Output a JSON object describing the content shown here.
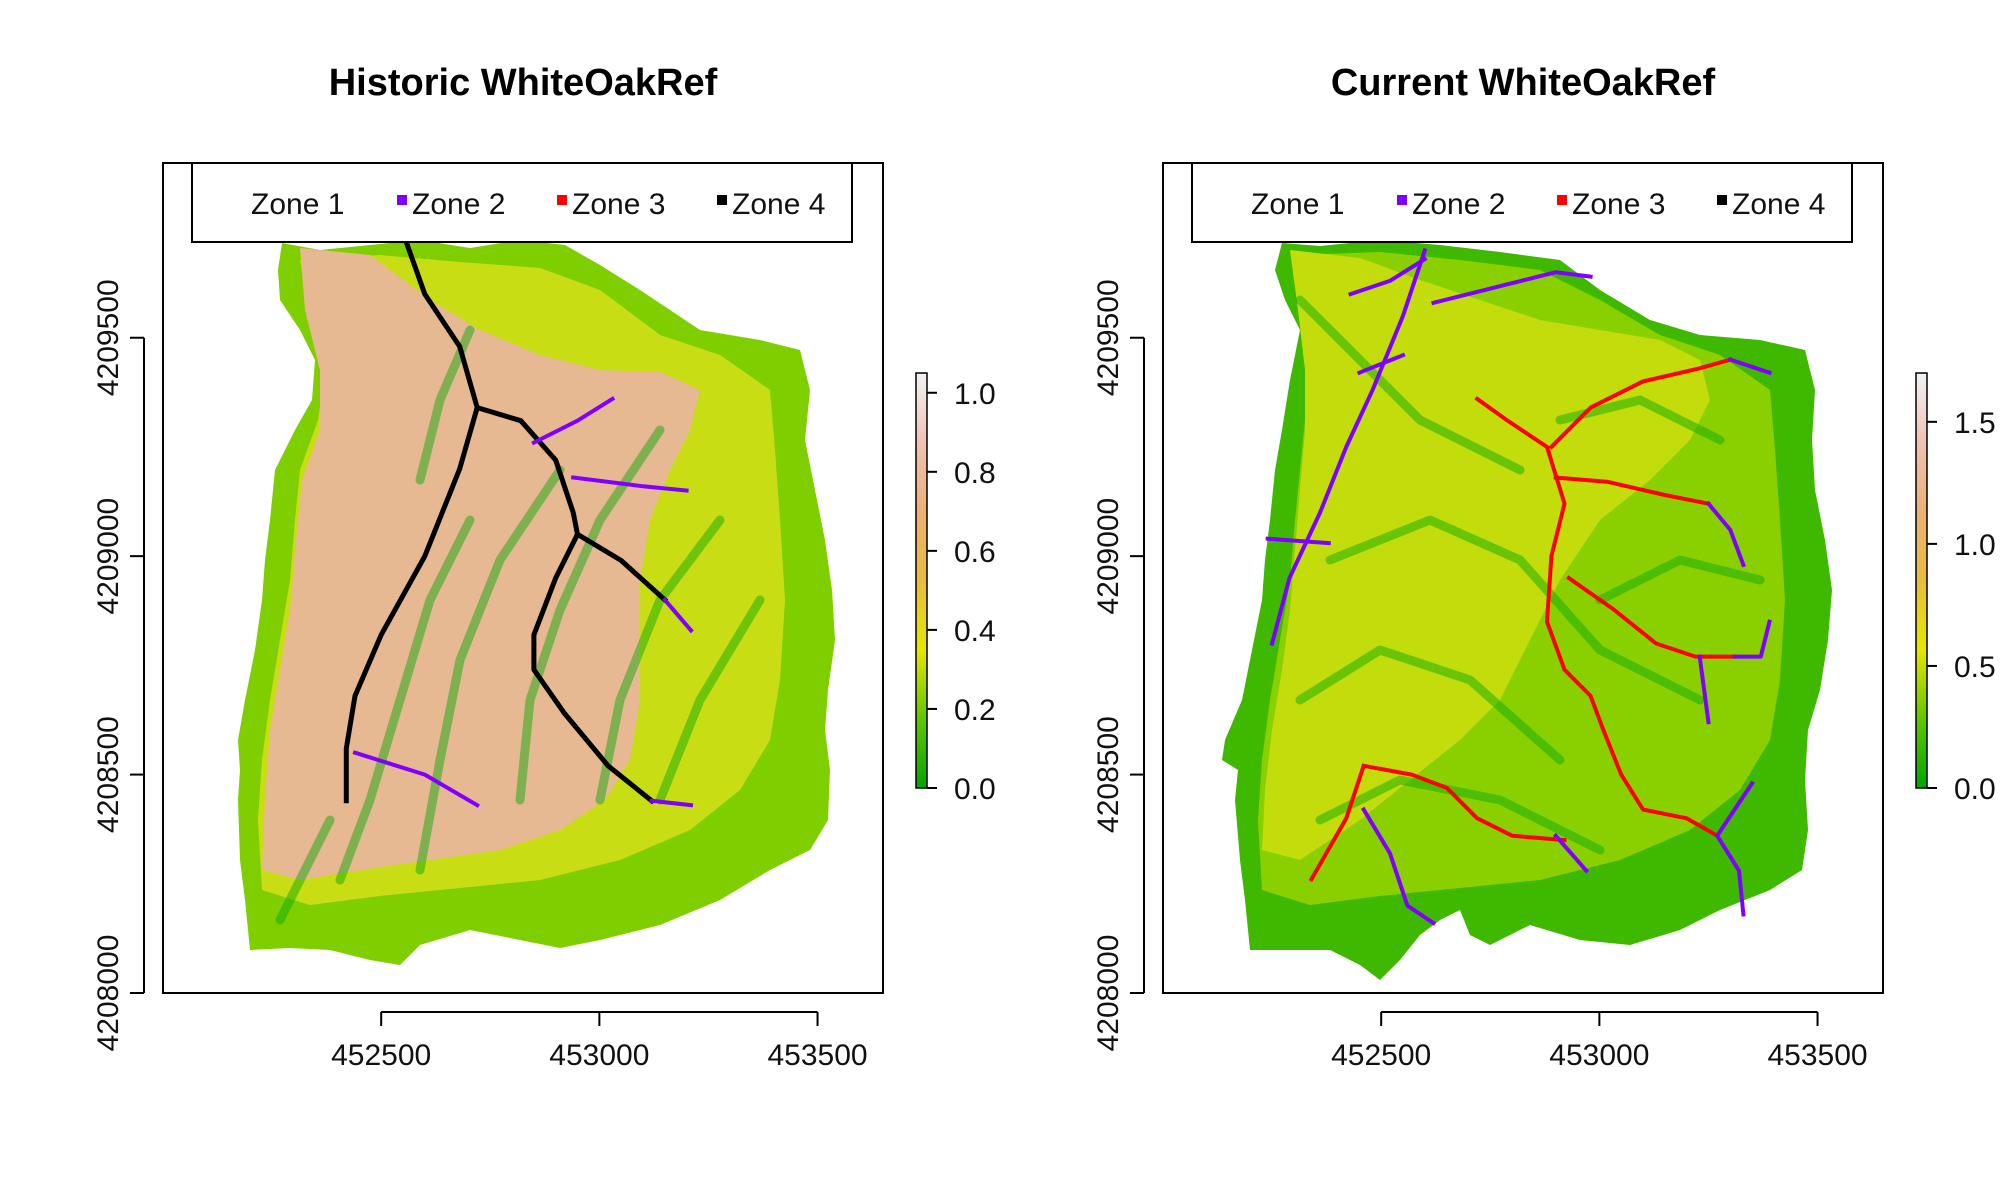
{
  "chart_data": [
    {
      "type": "heatmap",
      "title": "Historic WhiteOakRef",
      "xlabel": "",
      "ylabel": "",
      "xlim": [
        452000,
        453650
      ],
      "ylim": [
        4208000,
        4209900
      ],
      "x_ticks": [
        452500,
        453000,
        453500
      ],
      "y_ticks": [
        4208000,
        4208500,
        4209000,
        4209500
      ],
      "x_tick_labels": [
        "452500",
        "453000",
        "453500"
      ],
      "y_tick_labels": [
        "4208000",
        "4208500",
        "4209000",
        "4209500"
      ],
      "legend": {
        "placement": "top",
        "entries": [
          {
            "label": "Zone 1",
            "color": "#ffffff"
          },
          {
            "label": "Zone 2",
            "color": "#8000ff"
          },
          {
            "label": "Zone 3",
            "color": "#ff0000"
          },
          {
            "label": "Zone 4",
            "color": "#000000"
          }
        ]
      },
      "colorbar": {
        "range": [
          0,
          1.05
        ],
        "ticks": [
          0.0,
          0.2,
          0.4,
          0.6,
          0.8,
          1.0
        ],
        "tick_labels": [
          "0.0",
          "0.2",
          "0.4",
          "0.6",
          "0.8",
          "1.0"
        ],
        "colors": [
          "#00a600",
          "#63c600",
          "#e6e600",
          "#e9bd3a",
          "#ecb176",
          "#efc2b3",
          "#f2f2f2"
        ]
      },
      "dominant_colors": {
        "outer": "#7fcf00",
        "middle": "#c9dd14",
        "inner": "#e6b992"
      },
      "streams": [
        {
          "zone": "Zone 4",
          "points": [
            [
              452550,
              4209740
            ],
            [
              452600,
              4209600
            ],
            [
              452680,
              4209480
            ],
            [
              452720,
              4209340
            ],
            [
              452680,
              4209200
            ],
            [
              452600,
              4209000
            ],
            [
              452500,
              4208820
            ],
            [
              452440,
              4208680
            ],
            [
              452420,
              4208560
            ],
            [
              452420,
              4208440
            ]
          ]
        },
        {
          "zone": "Zone 4",
          "points": [
            [
              452720,
              4209340
            ],
            [
              452820,
              4209310
            ],
            [
              452900,
              4209220
            ],
            [
              452940,
              4209100
            ],
            [
              452950,
              4209050
            ],
            [
              452900,
              4208950
            ],
            [
              452850,
              4208820
            ],
            [
              452850,
              4208740
            ],
            [
              452920,
              4208640
            ],
            [
              453020,
              4208520
            ],
            [
              453120,
              4208440
            ]
          ]
        },
        {
          "zone": "Zone 2",
          "points": [
            [
              452850,
              4209260
            ],
            [
              452950,
              4209310
            ],
            [
              453030,
              4209360
            ]
          ]
        },
        {
          "zone": "Zone 2",
          "points": [
            [
              452940,
              4209180
            ],
            [
              453100,
              4209160
            ],
            [
              453200,
              4209150
            ]
          ]
        },
        {
          "zone": "Zone 4",
          "points": [
            [
              452950,
              4209050
            ],
            [
              453050,
              4208990
            ],
            [
              453150,
              4208900
            ]
          ]
        },
        {
          "zone": "Zone 2",
          "points": [
            [
              453150,
              4208900
            ],
            [
              453210,
              4208830
            ]
          ]
        },
        {
          "zone": "Zone 2",
          "points": [
            [
              453120,
              4208440
            ],
            [
              453210,
              4208430
            ]
          ]
        },
        {
          "zone": "Zone 2",
          "points": [
            [
              452440,
              4208550
            ],
            [
              452600,
              4208500
            ],
            [
              452720,
              4208430
            ]
          ]
        }
      ]
    },
    {
      "type": "heatmap",
      "title": "Current WhiteOakRef",
      "xlabel": "",
      "ylabel": "",
      "xlim": [
        452000,
        453650
      ],
      "ylim": [
        4208000,
        4209900
      ],
      "x_ticks": [
        452500,
        453000,
        453500
      ],
      "y_ticks": [
        4208000,
        4208500,
        4209000,
        4209500
      ],
      "x_tick_labels": [
        "452500",
        "453000",
        "453500"
      ],
      "y_tick_labels": [
        "4208000",
        "4208500",
        "4209000",
        "4209500"
      ],
      "legend": {
        "placement": "top",
        "entries": [
          {
            "label": "Zone 1",
            "color": "#ffffff"
          },
          {
            "label": "Zone 2",
            "color": "#8000ff"
          },
          {
            "label": "Zone 3",
            "color": "#ff0000"
          },
          {
            "label": "Zone 4",
            "color": "#000000"
          }
        ]
      },
      "colorbar": {
        "range": [
          0,
          1.7
        ],
        "ticks": [
          0.0,
          0.5,
          1.0,
          1.5
        ],
        "tick_labels": [
          "0.0",
          "0.5",
          "1.0",
          "1.5"
        ],
        "colors": [
          "#00a600",
          "#63c600",
          "#e6e600",
          "#e9bd3a",
          "#ecb176",
          "#efc2b3",
          "#f2f2f2"
        ]
      },
      "dominant_colors": {
        "outer": "#3fb800",
        "middle": "#8ad000",
        "inner": "#c2dc0c"
      },
      "streams": [
        {
          "zone": "Zone 2",
          "points": [
            [
              452600,
              4209700
            ],
            [
              452550,
              4209550
            ],
            [
              452480,
              4209380
            ],
            [
              452420,
              4209250
            ],
            [
              452360,
              4209100
            ],
            [
              452290,
              4208950
            ],
            [
              452250,
              4208800
            ]
          ]
        },
        {
          "zone": "Zone 2",
          "points": [
            [
              452430,
              4209600
            ],
            [
              452520,
              4209630
            ],
            [
              452600,
              4209680
            ]
          ]
        },
        {
          "zone": "Zone 2",
          "points": [
            [
              452450,
              4209420
            ],
            [
              452550,
              4209460
            ]
          ]
        },
        {
          "zone": "Zone 2",
          "points": [
            [
              452620,
              4209580
            ],
            [
              452780,
              4209620
            ],
            [
              452900,
              4209650
            ],
            [
              452980,
              4209640
            ]
          ]
        },
        {
          "zone": "Zone 2",
          "points": [
            [
              452240,
              4209040
            ],
            [
              452380,
              4209030
            ]
          ]
        },
        {
          "zone": "Zone 3",
          "points": [
            [
              452720,
              4209360
            ],
            [
              452790,
              4209310
            ],
            [
              452880,
              4209250
            ],
            [
              452920,
              4209120
            ],
            [
              452890,
              4209000
            ],
            [
              452880,
              4208850
            ],
            [
              452920,
              4208740
            ],
            [
              452980,
              4208680
            ],
            [
              453010,
              4208600
            ],
            [
              453050,
              4208500
            ],
            [
              453100,
              4208420
            ],
            [
              453200,
              4208400
            ],
            [
              453270,
              4208360
            ]
          ]
        },
        {
          "zone": "Zone 3",
          "points": [
            [
              452890,
              4209250
            ],
            [
              452980,
              4209340
            ],
            [
              453100,
              4209400
            ],
            [
              453230,
              4209430
            ],
            [
              453300,
              4209450
            ]
          ]
        },
        {
          "zone": "Zone 2",
          "points": [
            [
              453300,
              4209450
            ],
            [
              453390,
              4209420
            ]
          ]
        },
        {
          "zone": "Zone 3",
          "points": [
            [
              452900,
              4209180
            ],
            [
              453020,
              4209170
            ],
            [
              453150,
              4209140
            ],
            [
              453250,
              4209120
            ]
          ]
        },
        {
          "zone": "Zone 2",
          "points": [
            [
              453250,
              4209120
            ],
            [
              453300,
              4209060
            ],
            [
              453330,
              4208980
            ]
          ]
        },
        {
          "zone": "Zone 3",
          "points": [
            [
              452930,
              4208950
            ],
            [
              453030,
              4208880
            ],
            [
              453130,
              4208800
            ],
            [
              453220,
              4208770
            ],
            [
              453310,
              4208770
            ]
          ]
        },
        {
          "zone": "Zone 2",
          "points": [
            [
              453310,
              4208770
            ],
            [
              453370,
              4208770
            ],
            [
              453390,
              4208850
            ]
          ]
        },
        {
          "zone": "Zone 2",
          "points": [
            [
              453230,
              4208770
            ],
            [
              453250,
              4208620
            ]
          ]
        },
        {
          "zone": "Zone 3",
          "points": [
            [
              452460,
              4208520
            ],
            [
              452570,
              4208500
            ],
            [
              452650,
              4208470
            ],
            [
              452720,
              4208400
            ],
            [
              452800,
              4208360
            ],
            [
              452920,
              4208350
            ]
          ]
        },
        {
          "zone": "Zone 3",
          "points": [
            [
              452460,
              4208520
            ],
            [
              452420,
              4208400
            ],
            [
              452340,
              4208260
            ]
          ]
        },
        {
          "zone": "Zone 2",
          "points": [
            [
              452460,
              4208420
            ],
            [
              452520,
              4208320
            ],
            [
              452560,
              4208200
            ],
            [
              452620,
              4208160
            ]
          ]
        },
        {
          "zone": "Zone 2",
          "points": [
            [
              453270,
              4208360
            ],
            [
              453320,
              4208280
            ],
            [
              453330,
              4208180
            ]
          ]
        },
        {
          "zone": "Zone 2",
          "points": [
            [
              453270,
              4208360
            ],
            [
              453350,
              4208480
            ]
          ]
        },
        {
          "zone": "Zone 2",
          "points": [
            [
              452900,
              4208360
            ],
            [
              452970,
              4208280
            ]
          ]
        }
      ]
    }
  ]
}
